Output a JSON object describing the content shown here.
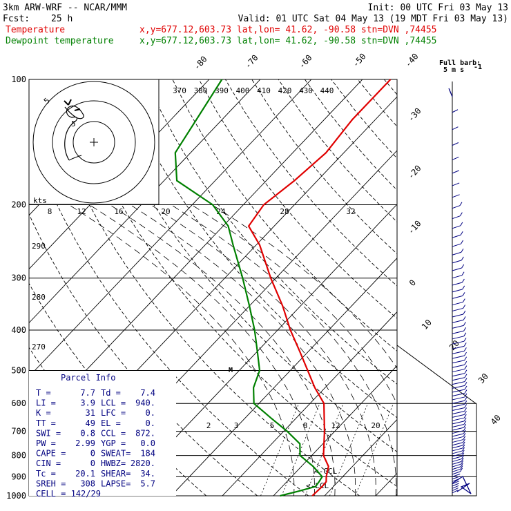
{
  "header": {
    "model": "3km ARW-WRF -- NCAR/MMM",
    "init": "Init: 00 UTC Fri 03 May 13",
    "fcst_label": "Fcst:",
    "fcst_value": "25 h",
    "valid": "Valid: 01 UTC Sat 04 May 13 (19 MDT Fri 03 May 13)",
    "temperature_label": "Temperature",
    "dewpoint_label": "Dewpoint temperature",
    "location_info": "x,y=677.12,603.73   lat,lon= 41.62, -90.58  stn=DVN ,74455"
  },
  "barb_legend": {
    "line1": "Full barb:",
    "line2": "5 m s"
  },
  "hodograph": {
    "units": "kts"
  },
  "parcel_info": {
    "title": "Parcel Info",
    "rows": [
      [
        "T  =",
        "7.7",
        "Td =",
        "7.4"
      ],
      [
        "LI =",
        "3.9",
        "LCL =",
        "940."
      ],
      [
        "K  =",
        "31",
        "LFC =",
        "0."
      ],
      [
        "TT =",
        "49",
        "EL  =",
        "0."
      ],
      [
        "SWI =",
        "0.8",
        "CCL =",
        "872."
      ],
      [
        "PW =",
        "2.99",
        "YGP =",
        "0.0"
      ],
      [
        "CAPE =",
        "0",
        "SWEAT=",
        "184"
      ],
      [
        "CIN =",
        "0",
        "HWBZ=",
        "2820."
      ],
      [
        "Tc =",
        "20.1",
        "SHEAR=",
        "34."
      ],
      [
        "SREH =",
        "308",
        "LAPSE=",
        "5.7"
      ],
      [
        "CELL = 142/29",
        "",
        "",
        ""
      ]
    ]
  },
  "markers": {
    "ccl": "<-CCL",
    "lcl": "<-LCL",
    "m": "M"
  },
  "chart_data": {
    "type": "line",
    "title": "",
    "pressure_levels": [
      100,
      200,
      300,
      400,
      500,
      600,
      700,
      800,
      900,
      1000
    ],
    "pressure_labels": [
      "100",
      "200",
      "300",
      "400",
      "500",
      "600",
      "700",
      "800",
      "900",
      "1000"
    ],
    "temperature_ticks": [
      -80,
      -70,
      -60,
      -50,
      -40,
      -30,
      -20,
      -10,
      0,
      10,
      20,
      30,
      40
    ],
    "temperature_tick_labels": [
      "-80",
      "-70",
      "-60",
      "-50",
      "-40",
      "-30",
      "-20",
      "-10",
      "0",
      "10",
      "20",
      "30",
      "40"
    ],
    "theta_e_labels": [
      "370",
      "380",
      "390",
      "400",
      "410",
      "420",
      "430",
      "440"
    ],
    "dry_adiabat_labels": [
      "290",
      "280",
      "270"
    ],
    "mixing_ratio_labels": [
      "2",
      "3",
      "5",
      "8",
      "12",
      "20"
    ],
    "hodograph_rings": [
      "8",
      "12",
      "16",
      "20",
      "24",
      "28",
      "32"
    ],
    "hodograph_inner_labels": [
      "5",
      "5"
    ],
    "series": [
      {
        "name": "Temperature",
        "color": "#e00000",
        "points": [
          [
            1000,
            7.6
          ],
          [
            950,
            7.8
          ],
          [
            925,
            7.7
          ],
          [
            900,
            6.8
          ],
          [
            850,
            5.3
          ],
          [
            800,
            2.3
          ],
          [
            700,
            -2.0
          ],
          [
            600,
            -7.3
          ],
          [
            550,
            -12.0
          ],
          [
            500,
            -16.6
          ],
          [
            450,
            -21.7
          ],
          [
            400,
            -27.5
          ],
          [
            350,
            -33.5
          ],
          [
            300,
            -41.0
          ],
          [
            250,
            -49.3
          ],
          [
            225,
            -55.0
          ],
          [
            200,
            -56.0
          ],
          [
            175,
            -54.5
          ],
          [
            150,
            -53.5
          ],
          [
            125,
            -54.5
          ],
          [
            100,
            -54.5
          ]
        ]
      },
      {
        "name": "Dewpoint temperature",
        "color": "#008000",
        "points": [
          [
            1000,
            1.3
          ],
          [
            975,
            4.0
          ],
          [
            950,
            6.5
          ],
          [
            925,
            6.3
          ],
          [
            900,
            6.0
          ],
          [
            850,
            2.3
          ],
          [
            800,
            -2.3
          ],
          [
            750,
            -4.5
          ],
          [
            700,
            -9.3
          ],
          [
            650,
            -15.0
          ],
          [
            600,
            -21.0
          ],
          [
            550,
            -24.0
          ],
          [
            500,
            -26.0
          ],
          [
            450,
            -30.0
          ],
          [
            400,
            -34.5
          ],
          [
            350,
            -40.0
          ],
          [
            300,
            -46.5
          ],
          [
            250,
            -54.5
          ],
          [
            225,
            -59.0
          ],
          [
            200,
            -66.0
          ],
          [
            175,
            -77.5
          ],
          [
            150,
            -83.0
          ],
          [
            125,
            -85.0
          ],
          [
            100,
            -87.5
          ]
        ]
      }
    ],
    "xlabel": "",
    "ylabel": ""
  },
  "colors": {
    "temperature": "#e00000",
    "dewpoint": "#008000",
    "barbs": "#000080",
    "info_text": "#000080"
  }
}
